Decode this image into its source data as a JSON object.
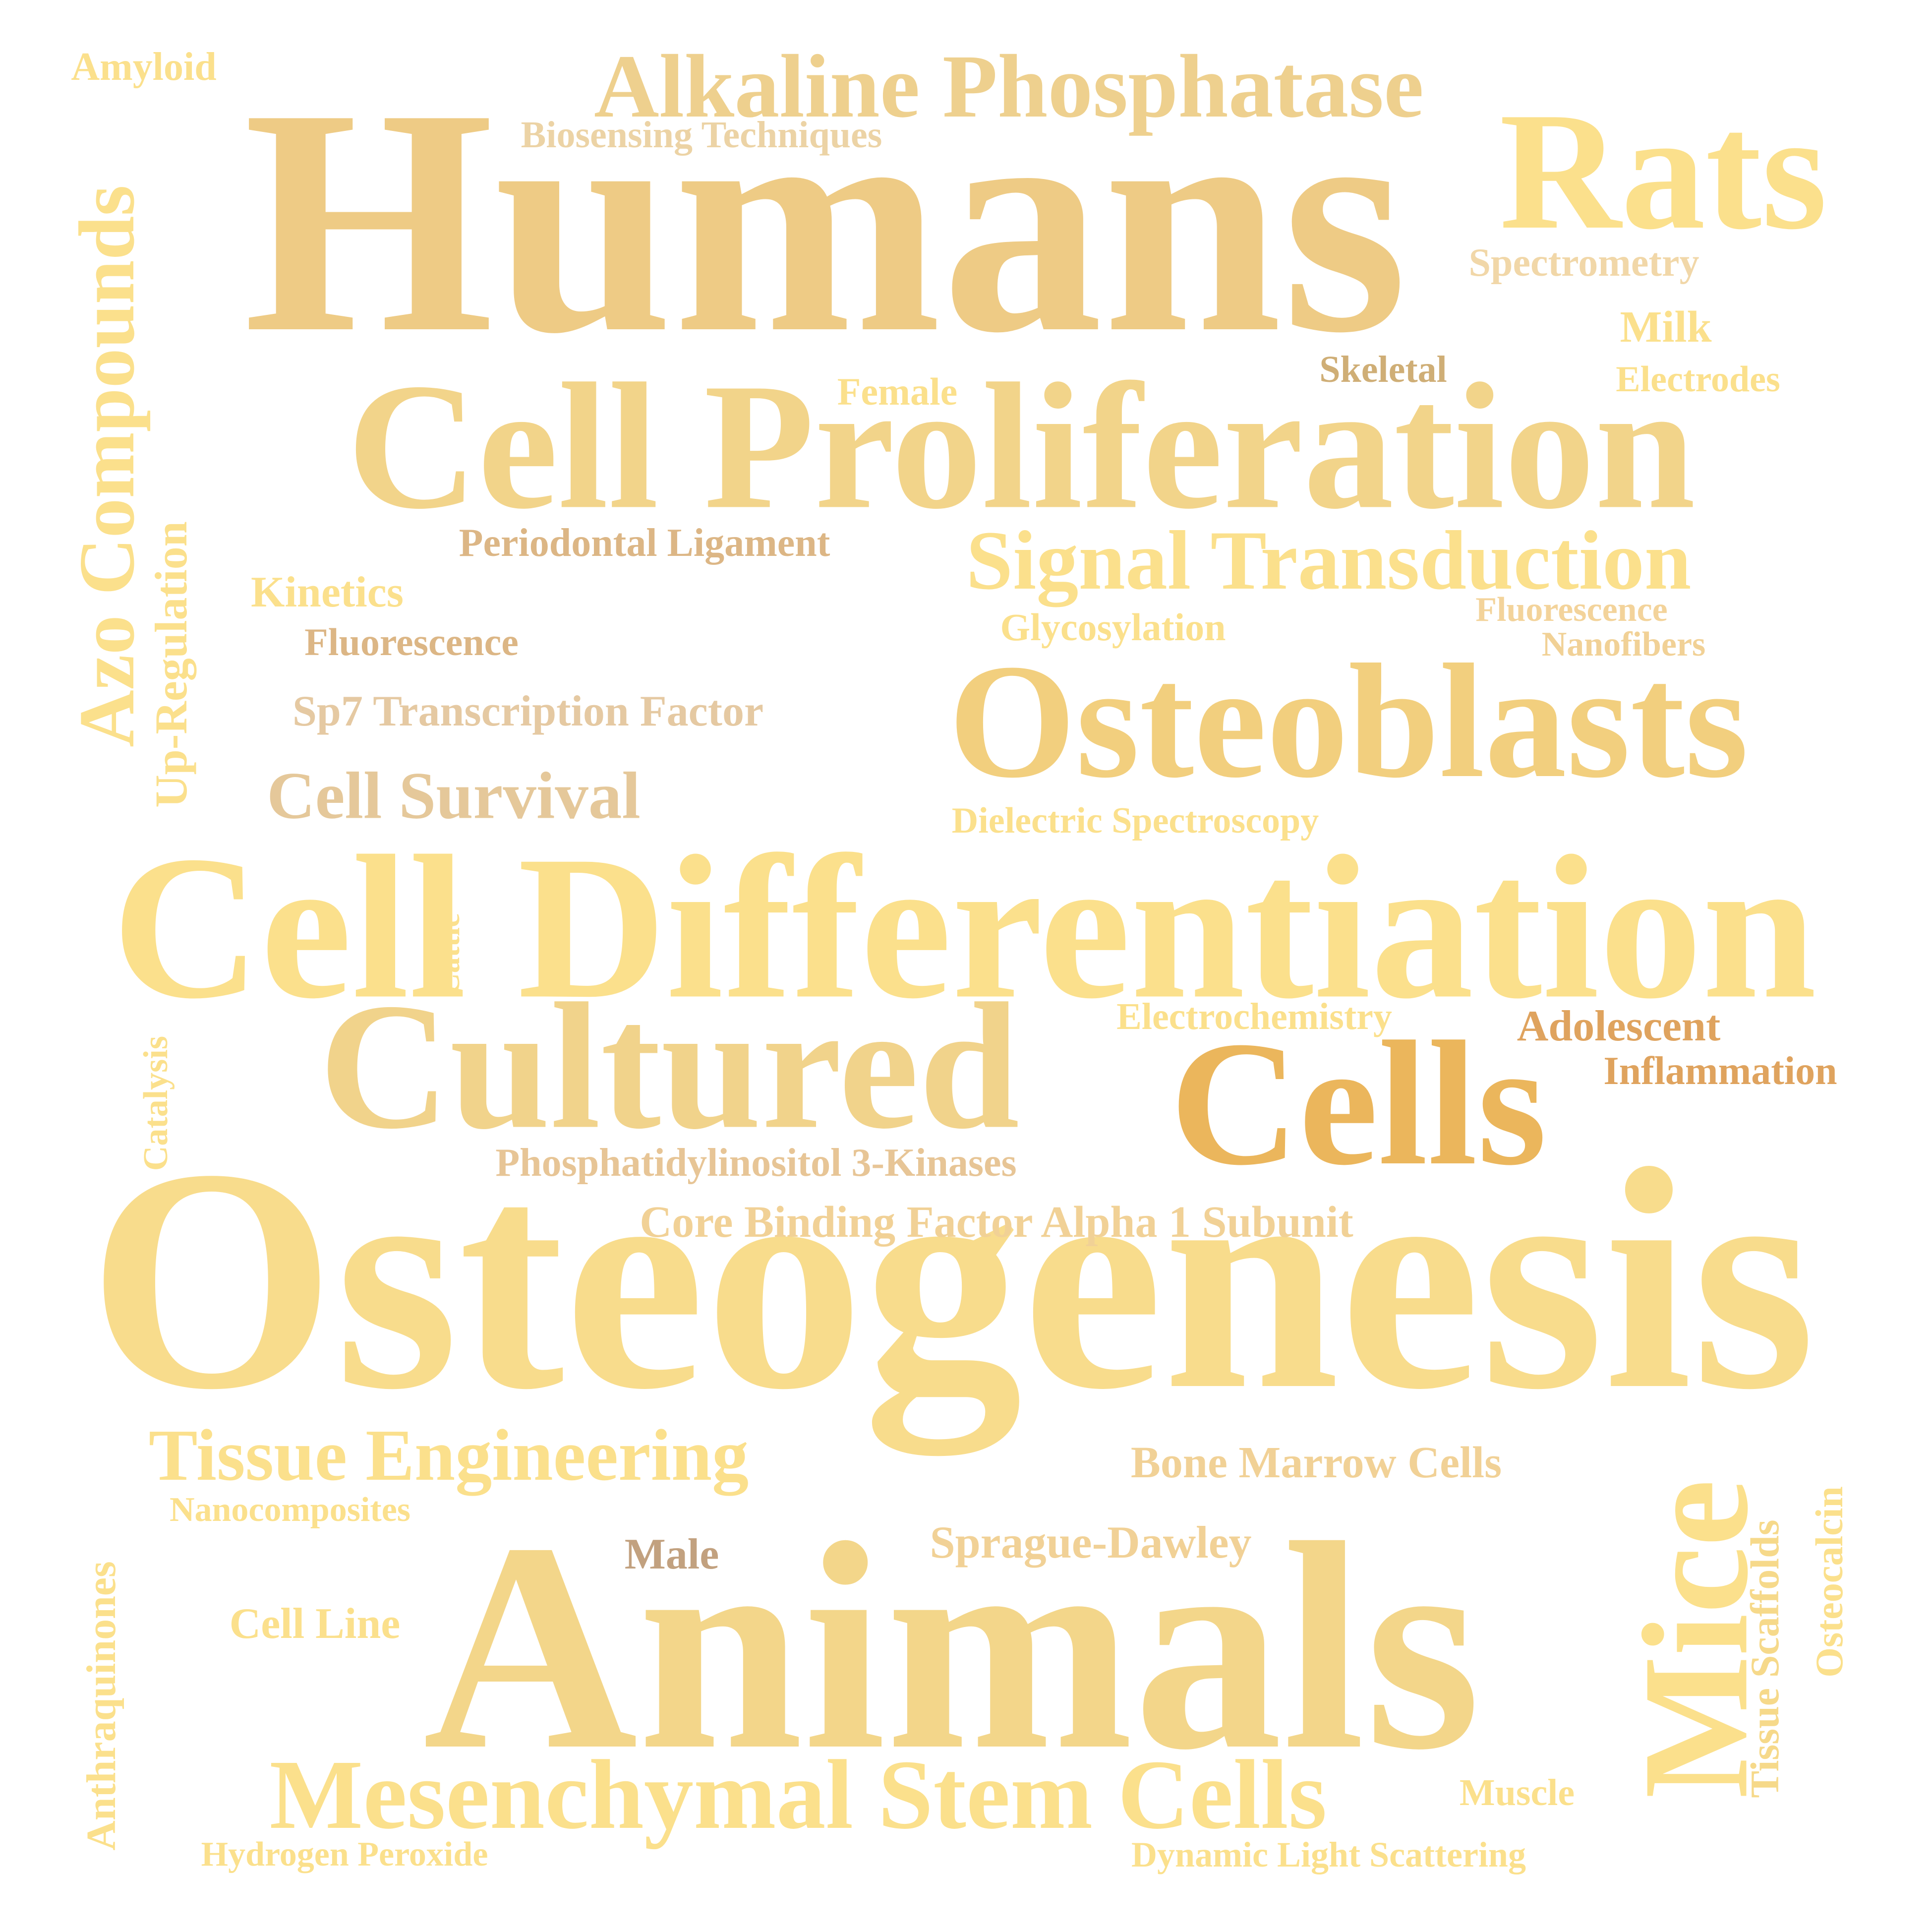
{
  "palette": {
    "background": "#ffffff",
    "pale_yellow": "#fbe08c",
    "light_gold": "#f6d98a",
    "sand": "#eecd8c",
    "wheat": "#e5c89a",
    "tan": "#dcb685",
    "orange_gold": "#e9b55a",
    "burnt_orange": "#dfa35e",
    "brown": "#c2a17f",
    "khaki": "#cfae76"
  },
  "words": [
    {
      "text": "Humans"
    },
    {
      "text": "Osteogenesis"
    },
    {
      "text": "Animals"
    },
    {
      "text": "Cell Differentiation"
    },
    {
      "text": "Cell Proliferation"
    },
    {
      "text": "Osteoblasts"
    },
    {
      "text": "Cultured"
    },
    {
      "text": "Cells"
    },
    {
      "text": "Rats"
    },
    {
      "text": "Mice"
    },
    {
      "text": "Alkaline Phosphatase"
    },
    {
      "text": "Mesenchymal Stem Cells"
    },
    {
      "text": "Azo Compounds"
    },
    {
      "text": "Signal Transduction"
    },
    {
      "text": "Tissue Engineering"
    },
    {
      "text": "Cell Survival"
    },
    {
      "text": "Core Binding Factor Alpha 1 Subunit"
    },
    {
      "text": "Sp7 Transcription Factor"
    },
    {
      "text": "Bone Marrow Cells"
    },
    {
      "text": "Sprague-Dawley"
    },
    {
      "text": "Periodontal Ligament"
    },
    {
      "text": "Phosphatidylinositol 3-Kinases"
    },
    {
      "text": "Biosensing Techniques"
    },
    {
      "text": "Up-Regulation"
    },
    {
      "text": "Anthraquinones"
    },
    {
      "text": "Tissue Scaffolds"
    },
    {
      "text": "Osteocalcin"
    },
    {
      "text": "Spectrometry"
    },
    {
      "text": "Adolescent"
    },
    {
      "text": "Inflammation"
    },
    {
      "text": "Electrochemistry"
    },
    {
      "text": "Dielectric Spectroscopy"
    },
    {
      "text": "Kinetics"
    },
    {
      "text": "Fluorescence"
    },
    {
      "text": "Fluorescence"
    },
    {
      "text": "Glycosylation"
    },
    {
      "text": "Nanofibers"
    },
    {
      "text": "Female"
    },
    {
      "text": "Skeletal"
    },
    {
      "text": "Milk"
    },
    {
      "text": "Electrodes"
    },
    {
      "text": "Amyloid"
    },
    {
      "text": "Cell Line"
    },
    {
      "text": "Male"
    },
    {
      "text": "Nanocomposites"
    },
    {
      "text": "Hydrogen Peroxide"
    },
    {
      "text": "Dynamic Light Scattering"
    },
    {
      "text": "Muscle"
    },
    {
      "text": "Catalysis"
    },
    {
      "text": "Cattle"
    }
  ]
}
